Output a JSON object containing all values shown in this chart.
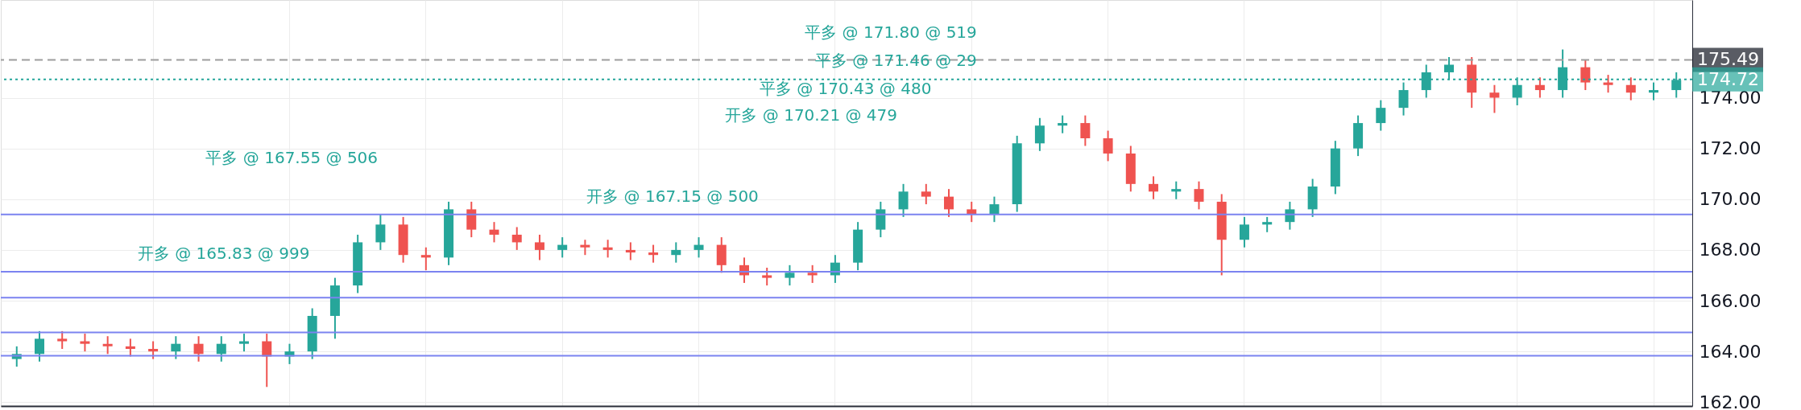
{
  "chart_data": {
    "type": "candlestick",
    "categories": [
      null,
      null,
      null,
      null,
      null,
      null,
      null,
      null,
      null,
      null,
      null,
      null,
      null,
      null,
      null,
      null,
      null,
      null,
      null,
      null,
      null,
      null,
      null,
      null,
      null,
      null,
      null,
      null,
      null,
      null,
      null,
      null,
      null,
      null,
      null,
      null,
      null,
      null,
      null,
      null,
      null,
      null,
      null,
      null,
      null,
      null,
      null,
      null,
      null,
      null,
      null,
      null,
      null,
      null,
      null,
      null,
      null,
      null,
      null,
      null,
      null,
      null,
      null,
      null,
      null,
      null,
      null,
      null,
      null,
      null,
      null,
      null,
      null,
      null
    ],
    "ohlc": [
      [
        163.7,
        164.2,
        163.4,
        163.9
      ],
      [
        163.9,
        164.8,
        163.6,
        164.5
      ],
      [
        164.5,
        164.8,
        164.1,
        164.4
      ],
      [
        164.4,
        164.7,
        164.0,
        164.3
      ],
      [
        164.3,
        164.6,
        163.9,
        164.2
      ],
      [
        164.2,
        164.5,
        163.8,
        164.1
      ],
      [
        164.1,
        164.4,
        163.7,
        164.0
      ],
      [
        164.0,
        164.6,
        163.7,
        164.3
      ],
      [
        164.3,
        164.6,
        163.6,
        163.9
      ],
      [
        163.9,
        164.6,
        163.6,
        164.3
      ],
      [
        164.3,
        164.7,
        164.0,
        164.4
      ],
      [
        164.4,
        164.7,
        162.6,
        163.8
      ],
      [
        163.8,
        164.3,
        163.5,
        164.0
      ],
      [
        164.0,
        165.7,
        163.7,
        165.4
      ],
      [
        165.4,
        166.9,
        164.5,
        166.6
      ],
      [
        166.6,
        168.6,
        166.3,
        168.3
      ],
      [
        168.3,
        169.4,
        168.0,
        169.0
      ],
      [
        169.0,
        169.3,
        167.5,
        167.8
      ],
      [
        167.8,
        168.1,
        167.2,
        167.7
      ],
      [
        167.7,
        169.9,
        167.4,
        169.6
      ],
      [
        169.6,
        169.9,
        168.5,
        168.8
      ],
      [
        168.8,
        169.1,
        168.3,
        168.6
      ],
      [
        168.6,
        168.9,
        168.0,
        168.3
      ],
      [
        168.3,
        168.6,
        167.6,
        168.0
      ],
      [
        168.0,
        168.5,
        167.7,
        168.2
      ],
      [
        168.2,
        168.4,
        167.8,
        168.1
      ],
      [
        168.1,
        168.4,
        167.7,
        168.0
      ],
      [
        168.0,
        168.3,
        167.6,
        167.9
      ],
      [
        167.9,
        168.2,
        167.5,
        167.8
      ],
      [
        167.8,
        168.3,
        167.5,
        168.0
      ],
      [
        168.0,
        168.5,
        167.7,
        168.2
      ],
      [
        168.2,
        168.5,
        167.1,
        167.4
      ],
      [
        167.4,
        167.7,
        166.7,
        167.0
      ],
      [
        167.0,
        167.3,
        166.6,
        166.9
      ],
      [
        166.9,
        167.4,
        166.6,
        167.1
      ],
      [
        167.1,
        167.4,
        166.7,
        167.0
      ],
      [
        167.0,
        167.8,
        166.7,
        167.5
      ],
      [
        167.5,
        169.1,
        167.2,
        168.8
      ],
      [
        168.8,
        169.9,
        168.5,
        169.6
      ],
      [
        169.6,
        170.6,
        169.3,
        170.3
      ],
      [
        170.3,
        170.6,
        169.8,
        170.1
      ],
      [
        170.1,
        170.4,
        169.3,
        169.6
      ],
      [
        169.6,
        169.9,
        169.1,
        169.4
      ],
      [
        169.4,
        170.1,
        169.1,
        169.8
      ],
      [
        169.8,
        172.5,
        169.5,
        172.2
      ],
      [
        172.2,
        173.2,
        171.9,
        172.9
      ],
      [
        172.9,
        173.3,
        172.6,
        173.0
      ],
      [
        173.0,
        173.3,
        172.1,
        172.4
      ],
      [
        172.4,
        172.7,
        171.5,
        171.8
      ],
      [
        171.8,
        172.1,
        170.3,
        170.6
      ],
      [
        170.6,
        170.9,
        170.0,
        170.3
      ],
      [
        170.3,
        170.7,
        170.0,
        170.4
      ],
      [
        170.4,
        170.7,
        169.6,
        169.9
      ],
      [
        169.9,
        170.2,
        167.0,
        168.4
      ],
      [
        168.4,
        169.3,
        168.1,
        169.0
      ],
      [
        169.0,
        169.3,
        168.7,
        169.1
      ],
      [
        169.1,
        169.9,
        168.8,
        169.6
      ],
      [
        169.6,
        170.8,
        169.3,
        170.5
      ],
      [
        170.5,
        172.3,
        170.2,
        172.0
      ],
      [
        172.0,
        173.3,
        171.7,
        173.0
      ],
      [
        173.0,
        173.9,
        172.7,
        173.6
      ],
      [
        173.6,
        174.6,
        173.3,
        174.3
      ],
      [
        174.3,
        175.3,
        174.0,
        175.0
      ],
      [
        175.0,
        175.6,
        174.7,
        175.3
      ],
      [
        175.3,
        175.6,
        173.6,
        174.2
      ],
      [
        174.2,
        174.5,
        173.4,
        174.0
      ],
      [
        174.0,
        174.8,
        173.7,
        174.5
      ],
      [
        174.5,
        174.8,
        174.0,
        174.3
      ],
      [
        174.3,
        175.9,
        174.0,
        175.2
      ],
      [
        175.2,
        175.5,
        174.3,
        174.6
      ],
      [
        174.6,
        174.9,
        174.2,
        174.5
      ],
      [
        174.5,
        174.8,
        173.9,
        174.2
      ],
      [
        174.2,
        174.6,
        173.9,
        174.3
      ],
      [
        174.3,
        175.0,
        174.0,
        174.7
      ]
    ],
    "colors": [
      "#26a69a",
      "#26a69a",
      "#ef5350",
      "#ef5350",
      "#ef5350",
      "#ef5350",
      "#ef5350",
      "#26a69a",
      "#ef5350",
      "#26a69a",
      "#26a69a",
      "#ef5350",
      "#26a69a",
      "#26a69a",
      "#26a69a",
      "#26a69a",
      "#26a69a",
      "#ef5350",
      "#ef5350",
      "#26a69a",
      "#ef5350",
      "#ef5350",
      "#ef5350",
      "#ef5350",
      "#26a69a",
      "#ef5350",
      "#ef5350",
      "#ef5350",
      "#ef5350",
      "#26a69a",
      "#26a69a",
      "#ef5350",
      "#ef5350",
      "#ef5350",
      "#26a69a",
      "#ef5350",
      "#26a69a",
      "#26a69a",
      "#26a69a",
      "#26a69a",
      "#ef5350",
      "#ef5350",
      "#ef5350",
      "#26a69a",
      "#26a69a",
      "#26a69a",
      "#26a69a",
      "#ef5350",
      "#ef5350",
      "#ef5350",
      "#ef5350",
      "#26a69a",
      "#ef5350",
      "#ef5350",
      "#26a69a",
      "#26a69a",
      "#26a69a",
      "#26a69a",
      "#26a69a",
      "#26a69a",
      "#26a69a",
      "#26a69a",
      "#26a69a",
      "#26a69a",
      "#ef5350",
      "#ef5350",
      "#26a69a",
      "#ef5350",
      "#26a69a",
      "#ef5350",
      "#ef5350",
      "#ef5350",
      "#26a69a",
      "#26a69a"
    ],
    "ylim": [
      161.85,
      177.85
    ],
    "yticks": [
      {
        "value": 162,
        "label": "162.00"
      },
      {
        "value": 164,
        "label": "164.00"
      },
      {
        "value": 166,
        "label": "166.00"
      },
      {
        "value": 168,
        "label": "168.00"
      },
      {
        "value": 170,
        "label": "170.00"
      },
      {
        "value": 172,
        "label": "172.00"
      },
      {
        "value": 174,
        "label": "174.00"
      }
    ],
    "tick_labels": "y",
    "grid": true,
    "ref_lines": [
      {
        "axis": "y",
        "value": 175.49,
        "label": "175.49",
        "color": "#9e9e9e",
        "line_style": "dashed"
      },
      {
        "axis": "y",
        "value": 174.72,
        "label": "174.72",
        "color": "#26a69a",
        "line_style": "dotted"
      },
      {
        "axis": "y",
        "value": 169.4,
        "color": "#7b83f0",
        "line_style": "solid"
      },
      {
        "axis": "y",
        "value": 167.14,
        "color": "#7b83f0",
        "line_style": "solid"
      },
      {
        "axis": "y",
        "value": 166.12,
        "color": "#7b83f0",
        "line_style": "solid"
      },
      {
        "axis": "y",
        "value": 164.75,
        "color": "#7b83f0",
        "line_style": "solid"
      },
      {
        "axis": "y",
        "value": 163.83,
        "color": "#7b83f0",
        "line_style": "solid"
      }
    ],
    "annotations": [
      "开多 @ 165.83 @ 999",
      "平多 @ 167.55 @ 506",
      "开多 @ 167.15 @ 500",
      "开多 @ 170.21 @ 479",
      "平多 @ 170.43 @ 480",
      "平多 @ 171.46 @ 29",
      "平多 @ 171.80 @ 519"
    ]
  }
}
